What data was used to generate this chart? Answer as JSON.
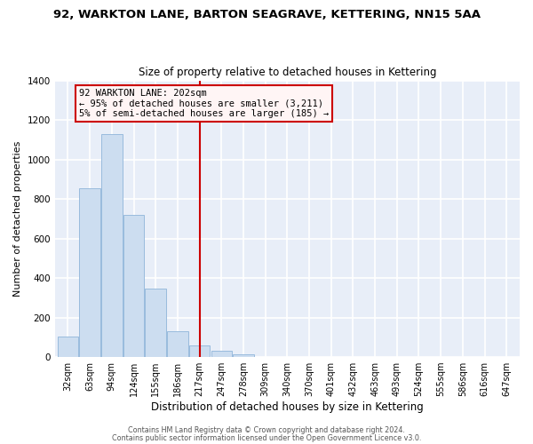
{
  "title1": "92, WARKTON LANE, BARTON SEAGRAVE, KETTERING, NN15 5AA",
  "title2": "Size of property relative to detached houses in Kettering",
  "xlabel": "Distribution of detached houses by size in Kettering",
  "ylabel": "Number of detached properties",
  "bar_color": "#ccddf0",
  "bar_edge_color": "#99bbdd",
  "categories": [
    "32sqm",
    "63sqm",
    "94sqm",
    "124sqm",
    "155sqm",
    "186sqm",
    "217sqm",
    "247sqm",
    "278sqm",
    "309sqm",
    "340sqm",
    "370sqm",
    "401sqm",
    "432sqm",
    "463sqm",
    "493sqm",
    "524sqm",
    "555sqm",
    "586sqm",
    "616sqm",
    "647sqm"
  ],
  "values": [
    105,
    855,
    1130,
    720,
    345,
    130,
    60,
    30,
    15,
    0,
    0,
    0,
    0,
    0,
    0,
    0,
    0,
    0,
    0,
    0,
    0
  ],
  "ylim": [
    0,
    1400
  ],
  "yticks": [
    0,
    200,
    400,
    600,
    800,
    1000,
    1200,
    1400
  ],
  "vline_x": 6.0,
  "vline_color": "#cc0000",
  "annotation_title": "92 WARKTON LANE: 202sqm",
  "annotation_line1": "← 95% of detached houses are smaller (3,211)",
  "annotation_line2": "5% of semi-detached houses are larger (185) →",
  "box_facecolor": "#fff5f5",
  "box_edgecolor": "#cc0000",
  "footer1": "Contains HM Land Registry data © Crown copyright and database right 2024.",
  "footer2": "Contains public sector information licensed under the Open Government Licence v3.0.",
  "bg_color": "#ffffff",
  "plot_bg_color": "#e8eef8",
  "grid_color": "#ffffff",
  "title1_fontsize": 9.5,
  "title2_fontsize": 8.5,
  "ylabel_fontsize": 8.0,
  "xlabel_fontsize": 8.5
}
